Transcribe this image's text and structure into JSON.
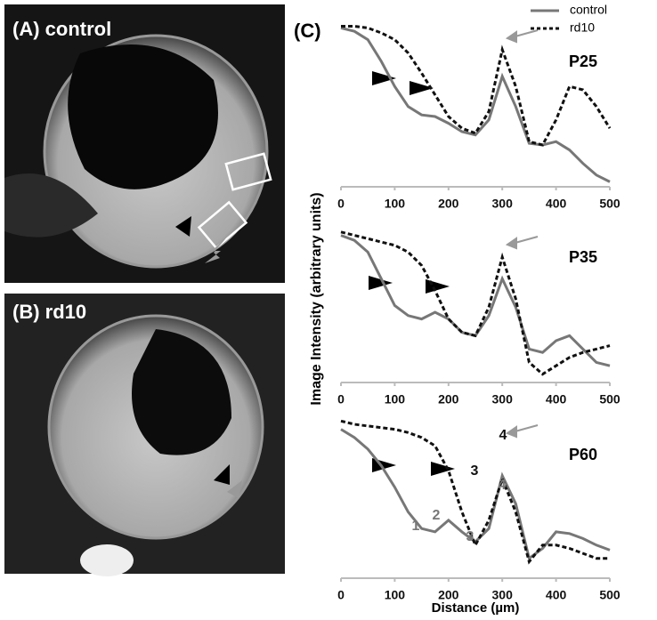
{
  "images": [
    {
      "label": "(A) control"
    },
    {
      "label": "(B) rd10"
    }
  ],
  "panel_label": "(C)",
  "chart_data": [
    {
      "type": "line",
      "title": "P25",
      "legend": "upper right",
      "x": [
        0,
        25,
        50,
        75,
        100,
        125,
        150,
        175,
        200,
        225,
        250,
        275,
        300,
        325,
        350,
        375,
        400,
        425,
        450,
        475,
        500
      ],
      "series": [
        {
          "name": "control",
          "color": "#777777",
          "dash": false,
          "values": [
            95,
            93,
            88,
            75,
            60,
            48,
            43,
            42,
            38,
            33,
            31,
            40,
            66,
            48,
            26,
            25,
            27,
            22,
            14,
            7,
            3
          ]
        },
        {
          "name": "rd10",
          "color": "#111111",
          "dash": true,
          "values": [
            96,
            96,
            95,
            92,
            88,
            80,
            68,
            55,
            42,
            35,
            32,
            45,
            82,
            60,
            27,
            25,
            40,
            60,
            58,
            48,
            35
          ]
        }
      ],
      "xlim": [
        0,
        500
      ],
      "xticks": [
        0,
        100,
        200,
        300,
        400,
        500
      ],
      "ylim": [
        0,
        100
      ]
    },
    {
      "type": "line",
      "title": "P35",
      "ylabel": "Image Intensity (arbitrary units)",
      "x": [
        0,
        25,
        50,
        75,
        100,
        125,
        150,
        175,
        200,
        225,
        250,
        275,
        300,
        325,
        350,
        375,
        400,
        425,
        450,
        475,
        500
      ],
      "series": [
        {
          "name": "control",
          "color": "#777777",
          "dash": false,
          "values": [
            88,
            85,
            78,
            62,
            46,
            40,
            38,
            42,
            38,
            30,
            28,
            40,
            62,
            45,
            20,
            18,
            25,
            28,
            20,
            12,
            10
          ]
        },
        {
          "name": "rd10",
          "color": "#111111",
          "dash": true,
          "values": [
            90,
            88,
            86,
            84,
            82,
            78,
            70,
            55,
            38,
            30,
            28,
            45,
            75,
            50,
            12,
            5,
            10,
            15,
            18,
            20,
            22
          ]
        }
      ],
      "xlim": [
        0,
        500
      ],
      "xticks": [
        0,
        100,
        200,
        300,
        400,
        500
      ],
      "ylim": [
        0,
        100
      ]
    },
    {
      "type": "line",
      "title": "P60",
      "xlabel": "Distance (µm)",
      "annotations": [
        "1",
        "2",
        "3",
        "3",
        "4",
        "4"
      ],
      "x": [
        0,
        25,
        50,
        75,
        100,
        125,
        150,
        175,
        200,
        225,
        250,
        275,
        300,
        325,
        350,
        375,
        400,
        425,
        450,
        475,
        500
      ],
      "series": [
        {
          "name": "control",
          "color": "#777777",
          "dash": false,
          "values": [
            90,
            85,
            78,
            68,
            55,
            40,
            30,
            28,
            35,
            28,
            22,
            30,
            62,
            45,
            12,
            18,
            28,
            27,
            24,
            20,
            17
          ]
        },
        {
          "name": "rd10",
          "color": "#111111",
          "dash": true,
          "values": [
            95,
            93,
            92,
            91,
            90,
            88,
            85,
            80,
            65,
            40,
            20,
            35,
            60,
            40,
            10,
            20,
            20,
            18,
            15,
            12,
            12
          ]
        }
      ],
      "xlim": [
        0,
        500
      ],
      "xticks": [
        0,
        100,
        200,
        300,
        400,
        500
      ],
      "ylim": [
        0,
        100
      ]
    }
  ]
}
